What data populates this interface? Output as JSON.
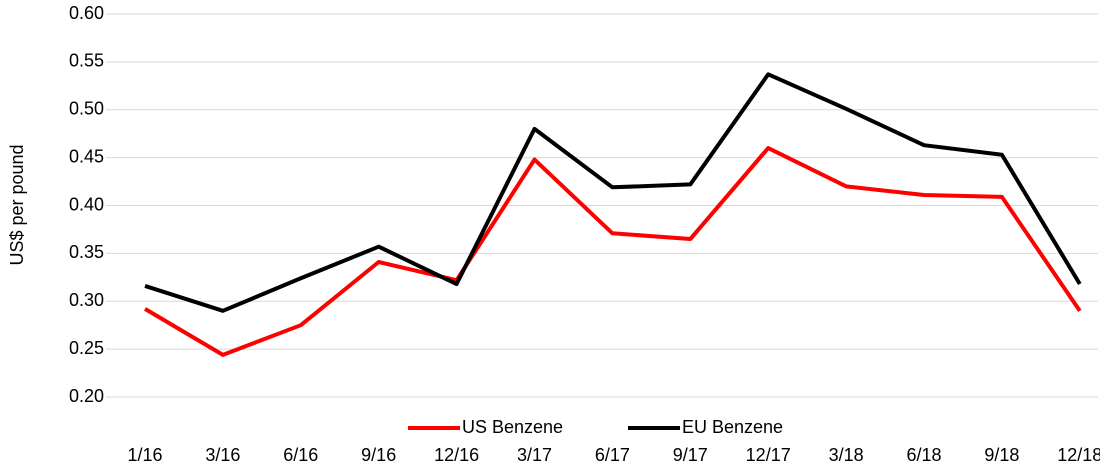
{
  "chart_data": {
    "type": "line",
    "y_label": "US$ per pound",
    "categories": [
      "1/16",
      "3/16",
      "6/16",
      "9/16",
      "12/16",
      "3/17",
      "6/17",
      "9/17",
      "12/17",
      "3/18",
      "6/18",
      "9/18",
      "12/18"
    ],
    "series": [
      {
        "name": "US Benzene",
        "color": "#ff0000",
        "values": [
          0.292,
          0.244,
          0.275,
          0.341,
          0.322,
          0.448,
          0.371,
          0.365,
          0.46,
          0.42,
          0.411,
          0.409,
          0.29
        ]
      },
      {
        "name": "EU Benzene",
        "color": "#000000",
        "values": [
          0.316,
          0.29,
          0.324,
          0.357,
          0.318,
          0.48,
          0.419,
          0.422,
          0.537,
          0.501,
          0.463,
          0.453,
          0.318
        ]
      }
    ],
    "ylim": [
      0.2,
      0.6
    ],
    "yticks": [
      {
        "value": 0.2,
        "label": "0.20"
      },
      {
        "value": 0.25,
        "label": "0.25"
      },
      {
        "value": 0.3,
        "label": "0.30"
      },
      {
        "value": 0.35,
        "label": "0.35"
      },
      {
        "value": 0.4,
        "label": "0.40"
      },
      {
        "value": 0.45,
        "label": "0.45"
      },
      {
        "value": 0.5,
        "label": "0.50"
      },
      {
        "value": 0.55,
        "label": "0.55"
      },
      {
        "value": 0.6,
        "label": "0.60"
      }
    ],
    "grid": true,
    "legend": "bottom"
  }
}
